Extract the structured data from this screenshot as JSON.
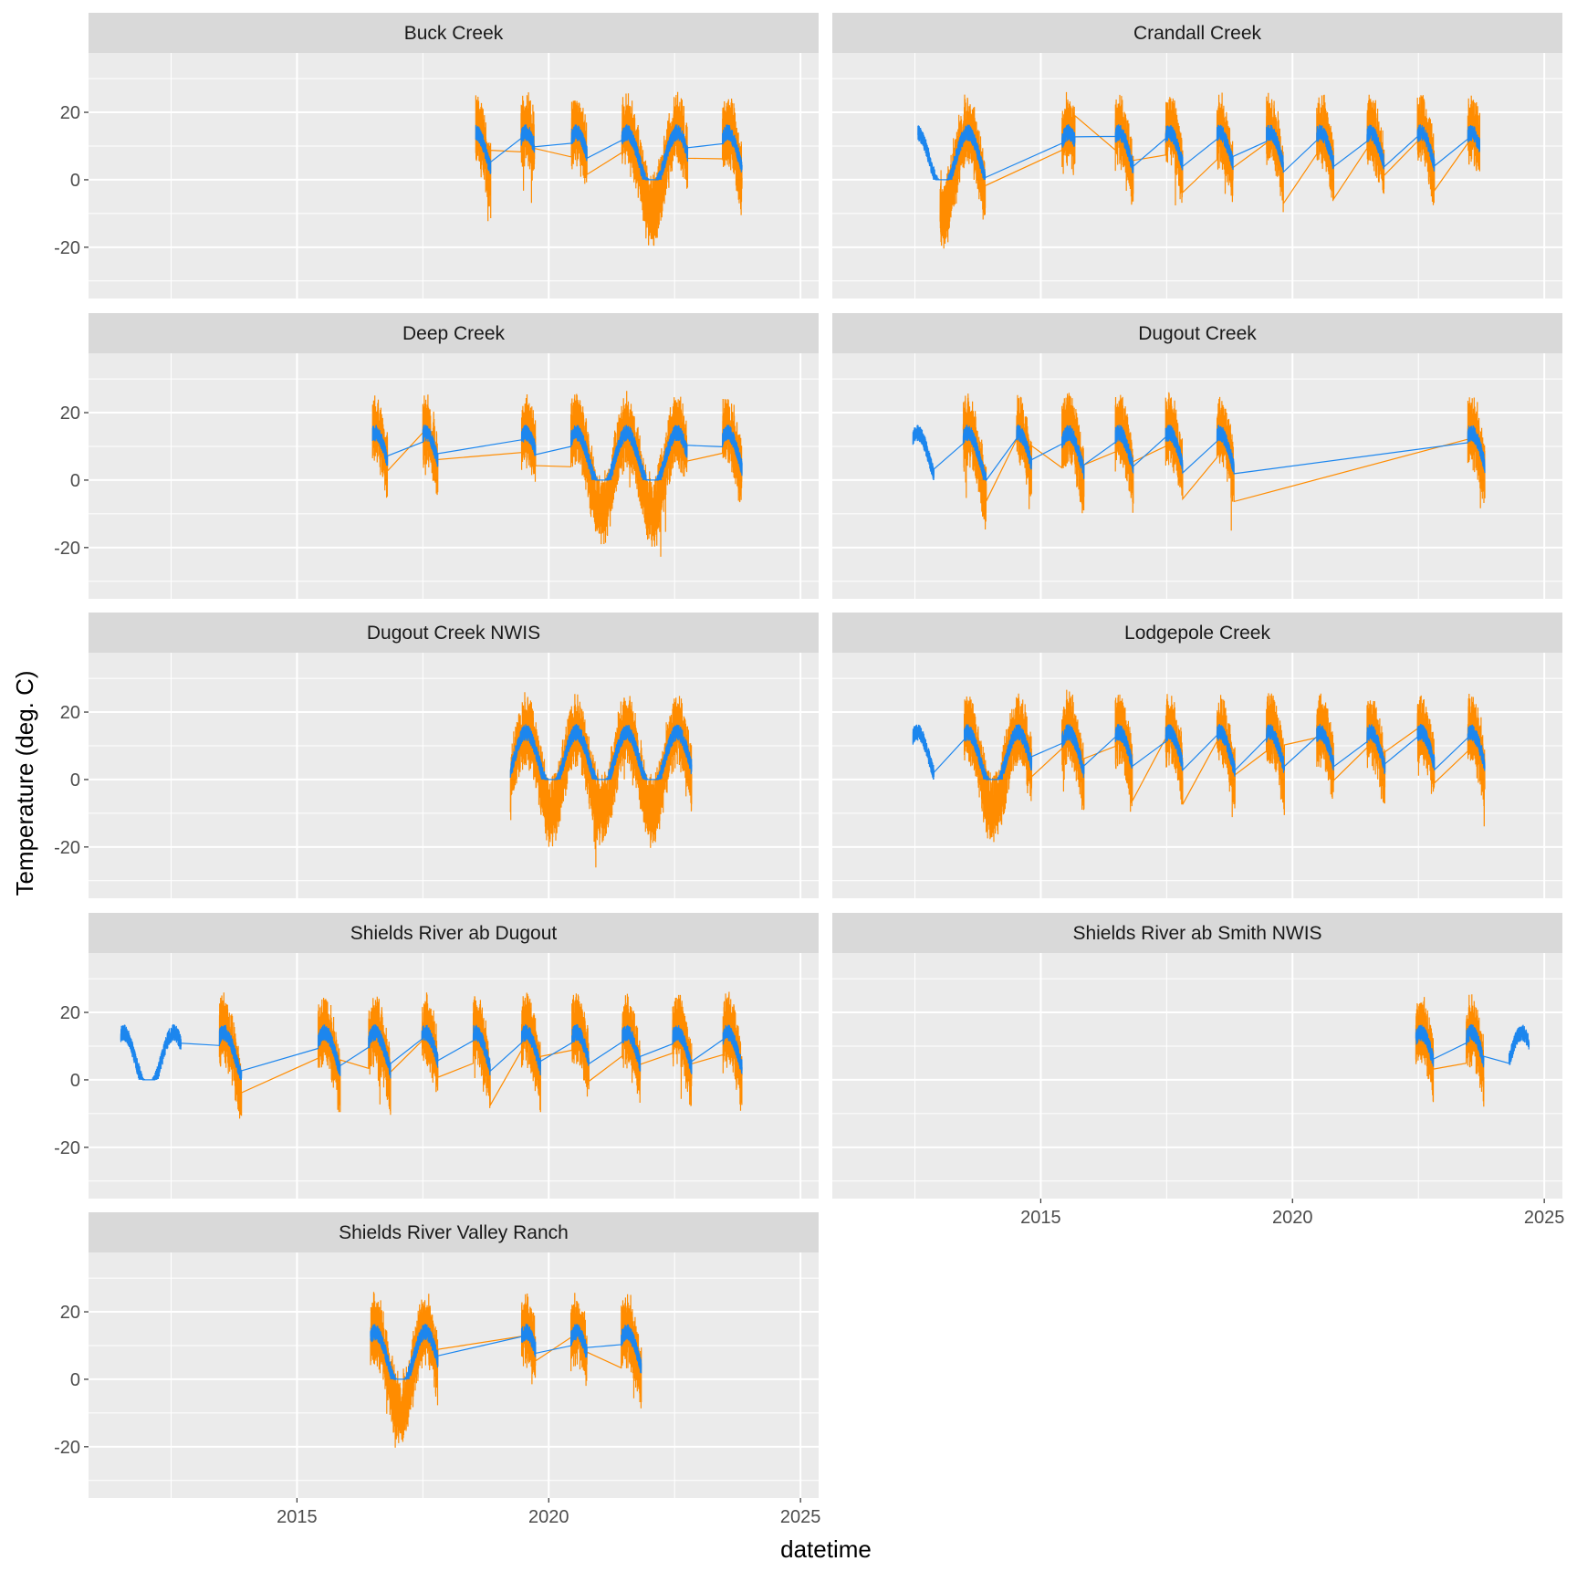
{
  "chart_data": {
    "type": "line",
    "facet_layout": "wrap, 2 columns",
    "xlabel": "datetime",
    "ylabel": "Temperature (deg. C)",
    "xlim": [
      2010.86,
      2025.36
    ],
    "ylim": [
      -35.2,
      37.6
    ],
    "x_ticks": [
      2015,
      2020,
      2025
    ],
    "y_ticks": [
      -20,
      0,
      20
    ],
    "grid": true,
    "legend": "none",
    "series_colors": [
      "#FF8C00",
      "#1C86EE"
    ],
    "panels": [
      {
        "title": "Buck Creek",
        "orange_segments": [
          [
            2018.55,
            2018.85
          ],
          [
            2019.45,
            2019.72
          ],
          [
            2020.45,
            2020.76
          ],
          [
            2021.45,
            2022.76
          ],
          [
            2023.45,
            2023.84
          ]
        ],
        "blue_segments": [
          [
            2018.55,
            2018.85
          ],
          [
            2019.45,
            2019.72
          ],
          [
            2020.45,
            2020.76
          ],
          [
            2021.45,
            2022.76
          ],
          [
            2023.45,
            2023.84
          ]
        ]
      },
      {
        "title": "Crandall Creek",
        "orange_segments": [
          [
            2013.0,
            2013.9
          ],
          [
            2015.42,
            2015.68
          ],
          [
            2016.48,
            2016.84
          ],
          [
            2017.48,
            2017.82
          ],
          [
            2018.5,
            2018.82
          ],
          [
            2019.48,
            2019.82
          ],
          [
            2020.48,
            2020.82
          ],
          [
            2021.48,
            2021.82
          ],
          [
            2022.48,
            2022.82
          ],
          [
            2023.48,
            2023.72
          ]
        ],
        "blue_segments": [
          [
            2012.56,
            2013.9
          ],
          [
            2015.42,
            2015.68
          ],
          [
            2016.48,
            2016.84
          ],
          [
            2017.48,
            2017.82
          ],
          [
            2018.5,
            2018.82
          ],
          [
            2019.48,
            2019.82
          ],
          [
            2020.48,
            2020.82
          ],
          [
            2021.48,
            2021.82
          ],
          [
            2022.48,
            2022.82
          ],
          [
            2023.48,
            2023.72
          ]
        ]
      },
      {
        "title": "Deep Creek",
        "orange_segments": [
          [
            2016.5,
            2016.8
          ],
          [
            2017.5,
            2017.8
          ],
          [
            2019.46,
            2019.74
          ],
          [
            2020.44,
            2022.75
          ],
          [
            2023.45,
            2023.84
          ]
        ],
        "blue_segments": [
          [
            2016.5,
            2016.8
          ],
          [
            2017.5,
            2017.8
          ],
          [
            2019.46,
            2019.74
          ],
          [
            2020.44,
            2022.75
          ],
          [
            2023.45,
            2023.84
          ]
        ]
      },
      {
        "title": "Dugout Creek",
        "orange_segments": [
          [
            2013.46,
            2013.92
          ],
          [
            2014.52,
            2014.82
          ],
          [
            2015.42,
            2015.86
          ],
          [
            2016.48,
            2016.84
          ],
          [
            2017.48,
            2017.82
          ],
          [
            2018.5,
            2018.84
          ],
          [
            2023.48,
            2023.82
          ]
        ],
        "blue_segments": [
          [
            2012.46,
            2012.88
          ],
          [
            2013.46,
            2013.92
          ],
          [
            2014.52,
            2014.82
          ],
          [
            2015.42,
            2015.86
          ],
          [
            2016.48,
            2016.84
          ],
          [
            2017.48,
            2017.82
          ],
          [
            2018.5,
            2018.84
          ],
          [
            2023.48,
            2023.82
          ]
        ]
      },
      {
        "title": "Dugout Creek NWIS",
        "orange_segments": [
          [
            2019.24,
            2022.84
          ]
        ],
        "blue_segments": [
          [
            2019.24,
            2022.84
          ]
        ]
      },
      {
        "title": "Lodgepole Creek",
        "orange_segments": [
          [
            2013.48,
            2014.82
          ],
          [
            2015.42,
            2015.86
          ],
          [
            2016.48,
            2016.82
          ],
          [
            2017.48,
            2017.82
          ],
          [
            2018.5,
            2018.86
          ],
          [
            2019.48,
            2019.84
          ],
          [
            2020.48,
            2020.82
          ],
          [
            2021.48,
            2021.84
          ],
          [
            2022.48,
            2022.82
          ],
          [
            2023.48,
            2023.82
          ]
        ],
        "blue_segments": [
          [
            2012.46,
            2012.88
          ],
          [
            2013.48,
            2014.82
          ],
          [
            2015.42,
            2015.86
          ],
          [
            2016.48,
            2016.82
          ],
          [
            2017.48,
            2017.82
          ],
          [
            2018.5,
            2018.86
          ],
          [
            2019.48,
            2019.84
          ],
          [
            2020.48,
            2020.82
          ],
          [
            2021.48,
            2021.84
          ],
          [
            2022.48,
            2022.82
          ],
          [
            2023.48,
            2023.82
          ]
        ]
      },
      {
        "title": "Shields River ab Dugout",
        "orange_segments": [
          [
            2013.46,
            2013.9
          ],
          [
            2015.42,
            2015.86
          ],
          [
            2016.42,
            2016.86
          ],
          [
            2017.48,
            2017.8
          ],
          [
            2018.5,
            2018.84
          ],
          [
            2019.46,
            2019.84
          ],
          [
            2020.46,
            2020.8
          ],
          [
            2021.46,
            2021.82
          ],
          [
            2022.46,
            2022.84
          ],
          [
            2023.46,
            2023.84
          ]
        ],
        "blue_segments": [
          [
            2011.5,
            2012.7
          ],
          [
            2013.46,
            2013.9
          ],
          [
            2015.42,
            2015.86
          ],
          [
            2016.42,
            2016.86
          ],
          [
            2017.48,
            2017.8
          ],
          [
            2018.5,
            2018.84
          ],
          [
            2019.46,
            2019.84
          ],
          [
            2020.46,
            2020.8
          ],
          [
            2021.46,
            2021.82
          ],
          [
            2022.46,
            2022.84
          ],
          [
            2023.46,
            2023.84
          ]
        ]
      },
      {
        "title": "Shields River ab Smith NWIS",
        "orange_segments": [
          [
            2022.45,
            2022.8
          ],
          [
            2023.45,
            2023.8
          ]
        ],
        "blue_segments": [
          [
            2022.45,
            2022.8
          ],
          [
            2023.45,
            2023.8
          ],
          [
            2024.3,
            2024.7
          ]
        ]
      },
      {
        "title": "Shields River Valley Ranch",
        "orange_segments": [
          [
            2016.46,
            2017.8
          ],
          [
            2019.46,
            2019.74
          ],
          [
            2020.44,
            2020.76
          ],
          [
            2021.44,
            2021.84
          ]
        ],
        "blue_segments": [
          [
            2016.46,
            2017.8
          ],
          [
            2019.46,
            2019.74
          ],
          [
            2020.44,
            2020.76
          ],
          [
            2021.44,
            2021.84
          ]
        ]
      }
    ]
  }
}
